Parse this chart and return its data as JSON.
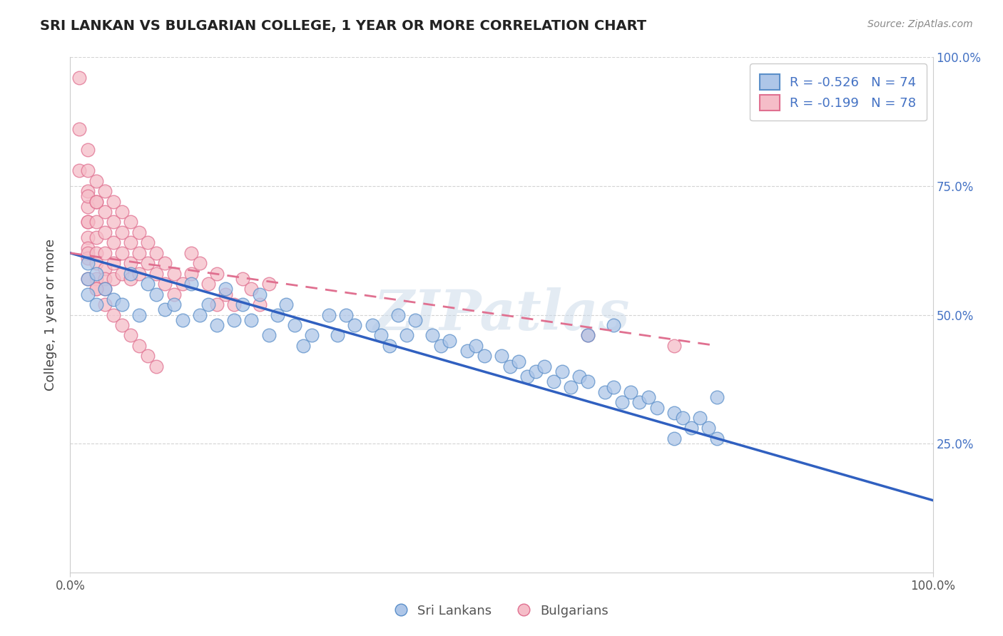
{
  "title": "SRI LANKAN VS BULGARIAN COLLEGE, 1 YEAR OR MORE CORRELATION CHART",
  "source": "Source: ZipAtlas.com",
  "ylabel": "College, 1 year or more",
  "legend_label_blue": "Sri Lankans",
  "legend_label_pink": "Bulgarians",
  "R_blue": -0.526,
  "N_blue": 74,
  "R_pink": -0.199,
  "N_pink": 78,
  "xlim": [
    0.0,
    1.0
  ],
  "ylim": [
    0.0,
    1.0
  ],
  "ytick_positions": [
    0.25,
    0.5,
    0.75,
    1.0
  ],
  "background_color": "#ffffff",
  "grid_color": "#d0d0d0",
  "blue_dot_color": "#aec6e8",
  "blue_dot_edge": "#5b8fc9",
  "pink_dot_color": "#f5bdc8",
  "pink_dot_edge": "#e07090",
  "blue_line_color": "#3060c0",
  "pink_line_color": "#e07090",
  "watermark": "ZIPatlas",
  "blue_line_x0": 0.0,
  "blue_line_y0": 0.62,
  "blue_line_x1": 1.0,
  "blue_line_y1": 0.14,
  "pink_line_x0": 0.0,
  "pink_line_y0": 0.62,
  "pink_line_x1": 0.75,
  "pink_line_y1": 0.44,
  "sri_lankan_x": [
    0.02,
    0.02,
    0.02,
    0.03,
    0.03,
    0.04,
    0.05,
    0.06,
    0.07,
    0.08,
    0.09,
    0.1,
    0.11,
    0.12,
    0.13,
    0.14,
    0.15,
    0.16,
    0.17,
    0.18,
    0.19,
    0.2,
    0.21,
    0.22,
    0.23,
    0.24,
    0.25,
    0.26,
    0.27,
    0.28,
    0.3,
    0.31,
    0.32,
    0.33,
    0.35,
    0.36,
    0.37,
    0.38,
    0.39,
    0.4,
    0.42,
    0.43,
    0.44,
    0.46,
    0.47,
    0.48,
    0.5,
    0.51,
    0.52,
    0.53,
    0.54,
    0.55,
    0.56,
    0.57,
    0.58,
    0.59,
    0.6,
    0.62,
    0.63,
    0.64,
    0.65,
    0.66,
    0.67,
    0.68,
    0.7,
    0.71,
    0.72,
    0.73,
    0.74,
    0.75,
    0.6,
    0.63,
    0.7,
    0.75
  ],
  "sri_lankan_y": [
    0.6,
    0.57,
    0.54,
    0.58,
    0.52,
    0.55,
    0.53,
    0.52,
    0.58,
    0.5,
    0.56,
    0.54,
    0.51,
    0.52,
    0.49,
    0.56,
    0.5,
    0.52,
    0.48,
    0.55,
    0.49,
    0.52,
    0.49,
    0.54,
    0.46,
    0.5,
    0.52,
    0.48,
    0.44,
    0.46,
    0.5,
    0.46,
    0.5,
    0.48,
    0.48,
    0.46,
    0.44,
    0.5,
    0.46,
    0.49,
    0.46,
    0.44,
    0.45,
    0.43,
    0.44,
    0.42,
    0.42,
    0.4,
    0.41,
    0.38,
    0.39,
    0.4,
    0.37,
    0.39,
    0.36,
    0.38,
    0.37,
    0.35,
    0.36,
    0.33,
    0.35,
    0.33,
    0.34,
    0.32,
    0.31,
    0.3,
    0.28,
    0.3,
    0.28,
    0.26,
    0.46,
    0.48,
    0.26,
    0.34
  ],
  "bulgarian_x": [
    0.01,
    0.01,
    0.01,
    0.02,
    0.02,
    0.02,
    0.02,
    0.02,
    0.02,
    0.02,
    0.02,
    0.02,
    0.02,
    0.02,
    0.03,
    0.03,
    0.03,
    0.03,
    0.03,
    0.03,
    0.03,
    0.03,
    0.03,
    0.04,
    0.04,
    0.04,
    0.04,
    0.04,
    0.04,
    0.04,
    0.05,
    0.05,
    0.05,
    0.05,
    0.05,
    0.06,
    0.06,
    0.06,
    0.06,
    0.07,
    0.07,
    0.07,
    0.07,
    0.08,
    0.08,
    0.08,
    0.09,
    0.09,
    0.1,
    0.1,
    0.11,
    0.11,
    0.12,
    0.12,
    0.13,
    0.14,
    0.14,
    0.15,
    0.16,
    0.17,
    0.18,
    0.19,
    0.2,
    0.21,
    0.22,
    0.02,
    0.03,
    0.04,
    0.05,
    0.06,
    0.07,
    0.08,
    0.09,
    0.1,
    0.17,
    0.23,
    0.6,
    0.7
  ],
  "bulgarian_y": [
    0.96,
    0.86,
    0.78,
    0.82,
    0.78,
    0.74,
    0.71,
    0.68,
    0.65,
    0.63,
    0.61,
    0.73,
    0.68,
    0.62,
    0.76,
    0.72,
    0.68,
    0.65,
    0.62,
    0.6,
    0.57,
    0.55,
    0.72,
    0.74,
    0.7,
    0.66,
    0.62,
    0.59,
    0.57,
    0.55,
    0.72,
    0.68,
    0.64,
    0.6,
    0.57,
    0.7,
    0.66,
    0.62,
    0.58,
    0.68,
    0.64,
    0.6,
    0.57,
    0.66,
    0.62,
    0.58,
    0.64,
    0.6,
    0.62,
    0.58,
    0.6,
    0.56,
    0.58,
    0.54,
    0.56,
    0.62,
    0.58,
    0.6,
    0.56,
    0.58,
    0.54,
    0.52,
    0.57,
    0.55,
    0.52,
    0.57,
    0.55,
    0.52,
    0.5,
    0.48,
    0.46,
    0.44,
    0.42,
    0.4,
    0.52,
    0.56,
    0.46,
    0.44
  ]
}
